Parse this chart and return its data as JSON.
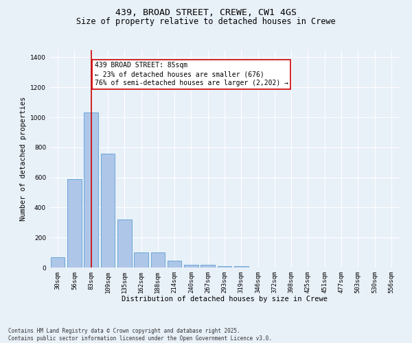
{
  "title_line1": "439, BROAD STREET, CREWE, CW1 4GS",
  "title_line2": "Size of property relative to detached houses in Crewe",
  "xlabel": "Distribution of detached houses by size in Crewe",
  "ylabel": "Number of detached properties",
  "categories": [
    "30sqm",
    "56sqm",
    "83sqm",
    "109sqm",
    "135sqm",
    "162sqm",
    "188sqm",
    "214sqm",
    "240sqm",
    "267sqm",
    "293sqm",
    "319sqm",
    "346sqm",
    "372sqm",
    "398sqm",
    "425sqm",
    "451sqm",
    "477sqm",
    "503sqm",
    "530sqm",
    "556sqm"
  ],
  "values": [
    70,
    590,
    1030,
    760,
    320,
    100,
    100,
    45,
    20,
    20,
    10,
    10,
    0,
    0,
    0,
    0,
    0,
    0,
    0,
    0,
    0
  ],
  "bar_color": "#aec6e8",
  "bar_edge_color": "#5a9fd4",
  "vline_position": 2,
  "vline_color": "#cc0000",
  "annotation_text": "439 BROAD STREET: 85sqm\n← 23% of detached houses are smaller (676)\n76% of semi-detached houses are larger (2,202) →",
  "annotation_box_color": "#ffffff",
  "annotation_box_edge": "#cc0000",
  "ylim": [
    0,
    1450
  ],
  "yticks": [
    0,
    200,
    400,
    600,
    800,
    1000,
    1200,
    1400
  ],
  "background_color": "#e8f0f8",
  "grid_color": "#ffffff",
  "footnote": "Contains HM Land Registry data © Crown copyright and database right 2025.\nContains public sector information licensed under the Open Government Licence v3.0.",
  "title_fontsize": 9.5,
  "subtitle_fontsize": 8.5,
  "axis_label_fontsize": 7.5,
  "tick_fontsize": 6.5,
  "annotation_fontsize": 7.0,
  "footnote_fontsize": 5.5
}
